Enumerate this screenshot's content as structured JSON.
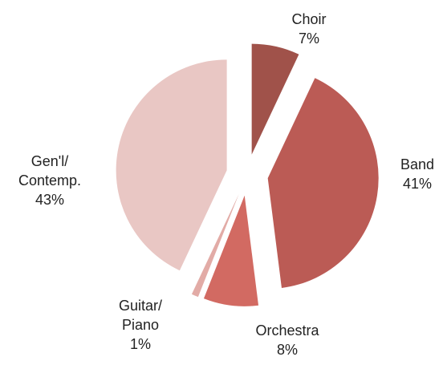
{
  "chart_data": {
    "type": "pie",
    "categories": [
      "Choir",
      "Band",
      "Orchestra",
      "Guitar/\nPiano",
      "Gen'l/\nContemp."
    ],
    "values": [
      7,
      41,
      8,
      1,
      43
    ],
    "value_labels": [
      "7%",
      "41%",
      "8%",
      "1%",
      "43%"
    ],
    "colors": [
      "#a0524a",
      "#bb5b55",
      "#d26a62",
      "#e2aba6",
      "#e9c7c4"
    ],
    "exploded": true
  }
}
